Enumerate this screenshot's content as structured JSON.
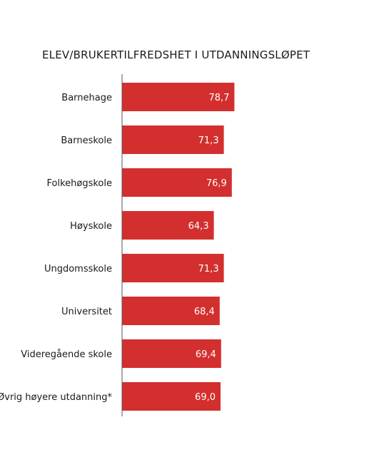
{
  "chart_data": {
    "type": "bar",
    "orientation": "horizontal",
    "title": "ELEV/BRUKERTILFREDSHET I UTDANNINGSLØPET",
    "categories": [
      "Barnehage",
      "Barneskole",
      "Folkehøgskole",
      "Høyskole",
      "Ungdomsskole",
      "Universitet",
      "Videregående skole",
      "Øvrig høyere utdanning*"
    ],
    "values": [
      78.7,
      71.3,
      76.9,
      64.3,
      71.3,
      68.4,
      69.4,
      69.0
    ],
    "value_labels": [
      "78,7",
      "71,3",
      "76,9",
      "64,3",
      "71,3",
      "68,4",
      "69,4",
      "69,0"
    ],
    "xlim": [
      0,
      100
    ],
    "grid": false,
    "bar_color": "#d32f2f"
  }
}
